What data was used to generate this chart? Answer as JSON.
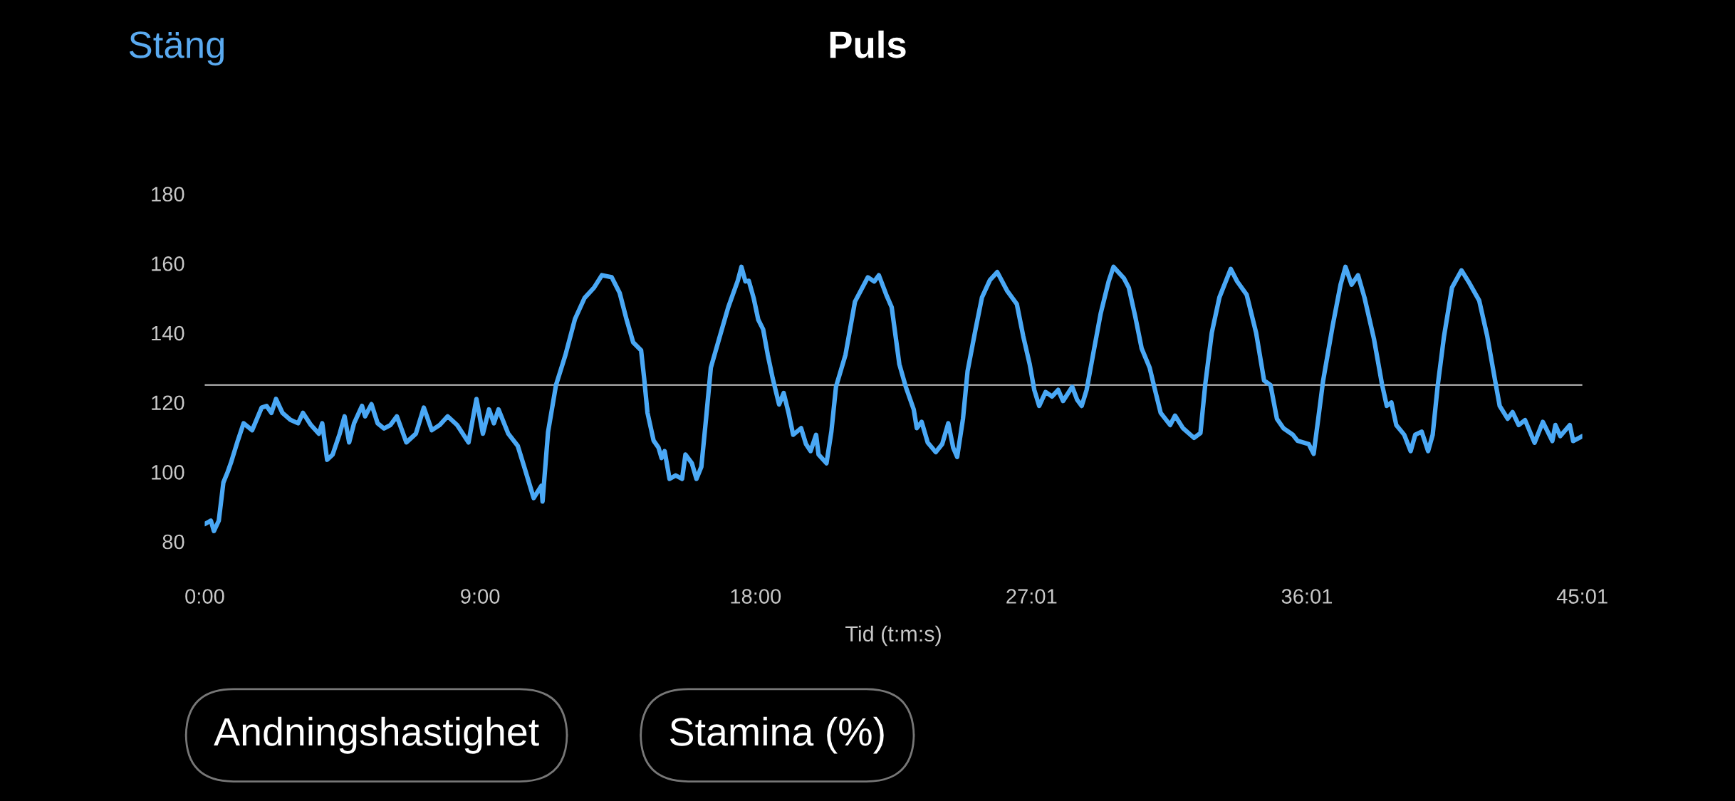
{
  "chart_data": {
    "type": "line",
    "title": "Puls",
    "xlabel": "Tid (t:m:s)",
    "annotations": [
      "Stäng",
      "Andningshastighet",
      "Stamina (%)"
    ],
    "xlim": [
      0,
      45.02
    ],
    "ylim": [
      80,
      180
    ],
    "xticks": [
      {
        "value": 0,
        "label": "0:00"
      },
      {
        "value": 9,
        "label": "9:00"
      },
      {
        "value": 18,
        "label": "18:00"
      },
      {
        "value": 27.02,
        "label": "27:01"
      },
      {
        "value": 36.02,
        "label": "36:01"
      },
      {
        "value": 45.02,
        "label": "45:01"
      }
    ],
    "yticks": [
      80,
      100,
      120,
      140,
      160,
      180
    ],
    "ref_lines": [
      {
        "axis": "y",
        "value": 125,
        "color": "#c8c8c8"
      }
    ],
    "grid": false,
    "marker": "none",
    "line_style": "solid",
    "series": [
      {
        "color": "#4aa8f5",
        "x": [
          0,
          0.2,
          0.3,
          0.46,
          0.61,
          0.75,
          0.87,
          1.08,
          1.27,
          1.55,
          1.86,
          2.02,
          2.18,
          2.33,
          2.54,
          2.8,
          3.05,
          3.21,
          3.47,
          3.73,
          3.84,
          4.0,
          4.18,
          4.41,
          4.57,
          4.72,
          4.88,
          5.14,
          5.24,
          5.45,
          5.65,
          5.86,
          6.07,
          6.28,
          6.59,
          6.9,
          7.16,
          7.42,
          7.68,
          7.94,
          8.25,
          8.62,
          8.88,
          9.09,
          9.29,
          9.45,
          9.6,
          9.92,
          10.23,
          10.44,
          10.75,
          11.0,
          11.04,
          11.22,
          11.48,
          11.79,
          12.1,
          12.41,
          12.72,
          12.98,
          13.3,
          13.56,
          13.79,
          14.0,
          14.26,
          14.36,
          14.47,
          14.67,
          14.83,
          14.93,
          15.03,
          15.19,
          15.39,
          15.6,
          15.71,
          15.92,
          16.07,
          16.23,
          16.38,
          16.54,
          16.8,
          17.11,
          17.42,
          17.54,
          17.67,
          17.78,
          17.94,
          18.09,
          18.25,
          18.4,
          18.56,
          18.77,
          18.92,
          19.08,
          19.23,
          19.49,
          19.65,
          19.8,
          19.98,
          20.06,
          20.32,
          20.48,
          20.63,
          20.94,
          21.25,
          21.67,
          21.88,
          22.03,
          22.29,
          22.45,
          22.7,
          22.91,
          23.17,
          23.27,
          23.43,
          23.63,
          23.89,
          24.1,
          24.3,
          24.46,
          24.59,
          24.78,
          24.93,
          25.19,
          25.4,
          25.66,
          25.9,
          26.23,
          26.54,
          26.75,
          26.96,
          27.11,
          27.27,
          27.48,
          27.69,
          27.89,
          28.05,
          28.35,
          28.51,
          28.66,
          28.82,
          29.03,
          29.28,
          29.54,
          29.7,
          30.04,
          30.2,
          30.41,
          30.62,
          30.88,
          31.03,
          31.24,
          31.55,
          31.71,
          31.97,
          32.33,
          32.54,
          32.7,
          32.91,
          33.16,
          33.53,
          33.74,
          34.05,
          34.36,
          34.62,
          34.83,
          35.04,
          35.25,
          35.56,
          35.71,
          36.08,
          36.24,
          36.39,
          36.55,
          36.86,
          37.12,
          37.28,
          37.48,
          37.69,
          37.9,
          38.21,
          38.47,
          38.63,
          38.78,
          38.94,
          39.2,
          39.41,
          39.56,
          39.77,
          39.98,
          40.13,
          40.29,
          40.5,
          40.76,
          41.07,
          41.33,
          41.65,
          41.91,
          42.17,
          42.32,
          42.58,
          42.74,
          42.94,
          43.15,
          43.46,
          43.73,
          44.04,
          44.14,
          44.3,
          44.61,
          44.72,
          45.02
        ],
        "values": [
          85,
          86,
          83,
          86,
          97,
          100,
          103,
          109,
          114,
          112,
          118.5,
          119,
          117,
          121,
          117,
          115,
          114,
          117,
          113.5,
          111,
          114,
          103.5,
          105,
          111,
          116,
          108.5,
          114,
          119,
          116,
          119.5,
          114,
          112.5,
          113.5,
          116,
          108.5,
          111,
          118.5,
          112,
          113.5,
          116,
          113.5,
          108.5,
          121,
          111,
          118,
          114,
          118,
          111,
          107.5,
          101.5,
          92.5,
          96,
          91.5,
          111.5,
          125,
          133.7,
          144,
          150,
          153,
          156.6,
          156,
          151.5,
          143.7,
          137.3,
          135,
          127,
          117,
          109,
          107,
          104,
          106,
          98,
          99,
          98,
          105,
          102.5,
          98,
          101.5,
          115,
          130,
          138,
          147.4,
          155,
          159,
          154.8,
          155,
          150,
          143.8,
          141,
          133.7,
          127,
          119.4,
          122.7,
          117,
          110.7,
          112.6,
          108,
          106,
          110.7,
          105,
          102.5,
          111.7,
          124.5,
          133.7,
          149,
          156,
          154.8,
          156.6,
          150.6,
          147.4,
          131,
          124.5,
          118,
          112.6,
          114.4,
          108.4,
          105.7,
          108,
          114,
          107,
          104.3,
          115.3,
          129,
          141,
          150.2,
          155.2,
          157.5,
          152,
          148.3,
          139,
          131,
          123.6,
          119,
          123,
          121.7,
          123.6,
          120.4,
          124.5,
          120.8,
          119,
          123.6,
          133.7,
          145.6,
          154.8,
          159,
          155.7,
          153,
          144.7,
          135.5,
          130,
          124.5,
          117,
          113.5,
          116.2,
          112.6,
          109.8,
          111.2,
          125.4,
          140,
          150.2,
          158.4,
          154.8,
          151,
          140,
          126.3,
          125,
          115.3,
          112.6,
          110.7,
          109,
          108,
          105.2,
          115.3,
          126.3,
          142,
          153.9,
          159,
          153.9,
          156.6,
          150.2,
          138.3,
          125.4,
          119,
          120,
          113.5,
          110.7,
          106,
          110.7,
          111.6,
          106,
          110.7,
          124.5,
          139,
          153,
          158,
          154.3,
          149.3,
          139.2,
          126.3,
          119,
          115.3,
          117.2,
          113.5,
          114.9,
          108.4,
          114.4,
          108.9,
          113.5,
          110.3,
          113.5,
          108.9,
          110.3
        ]
      }
    ]
  }
}
